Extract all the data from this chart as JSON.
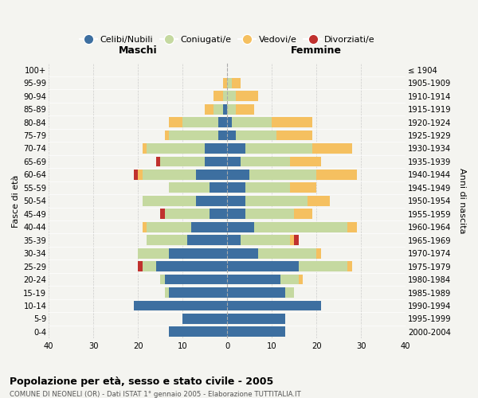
{
  "age_groups": [
    "0-4",
    "5-9",
    "10-14",
    "15-19",
    "20-24",
    "25-29",
    "30-34",
    "35-39",
    "40-44",
    "45-49",
    "50-54",
    "55-59",
    "60-64",
    "65-69",
    "70-74",
    "75-79",
    "80-84",
    "85-89",
    "90-94",
    "95-99",
    "100+"
  ],
  "birth_years": [
    "2000-2004",
    "1995-1999",
    "1990-1994",
    "1985-1989",
    "1980-1984",
    "1975-1979",
    "1970-1974",
    "1965-1969",
    "1960-1964",
    "1955-1959",
    "1950-1954",
    "1945-1949",
    "1940-1944",
    "1935-1939",
    "1930-1934",
    "1925-1929",
    "1920-1924",
    "1915-1919",
    "1910-1914",
    "1905-1909",
    "≤ 1904"
  ],
  "maschi": {
    "celibi": [
      13,
      10,
      21,
      13,
      14,
      16,
      13,
      9,
      8,
      4,
      7,
      4,
      7,
      5,
      5,
      2,
      2,
      1,
      0,
      0,
      0
    ],
    "coniugati": [
      0,
      0,
      0,
      1,
      1,
      3,
      7,
      9,
      10,
      10,
      12,
      9,
      12,
      10,
      13,
      11,
      8,
      2,
      1,
      0,
      0
    ],
    "vedovi": [
      0,
      0,
      0,
      0,
      0,
      0,
      0,
      0,
      1,
      0,
      0,
      0,
      1,
      0,
      1,
      1,
      3,
      2,
      2,
      1,
      0
    ],
    "divorziati": [
      0,
      0,
      0,
      0,
      0,
      1,
      0,
      0,
      0,
      1,
      0,
      0,
      1,
      1,
      0,
      0,
      0,
      0,
      0,
      0,
      0
    ]
  },
  "femmine": {
    "nubili": [
      13,
      13,
      21,
      13,
      12,
      16,
      7,
      3,
      6,
      4,
      4,
      4,
      5,
      3,
      4,
      2,
      1,
      0,
      0,
      0,
      0
    ],
    "coniugate": [
      0,
      0,
      0,
      2,
      4,
      11,
      13,
      11,
      21,
      11,
      14,
      10,
      15,
      11,
      15,
      9,
      9,
      2,
      2,
      1,
      0
    ],
    "vedove": [
      0,
      0,
      0,
      0,
      1,
      1,
      1,
      1,
      2,
      4,
      5,
      6,
      9,
      7,
      9,
      8,
      9,
      4,
      5,
      2,
      0
    ],
    "divorziate": [
      0,
      0,
      0,
      0,
      0,
      0,
      0,
      1,
      0,
      0,
      0,
      0,
      0,
      0,
      0,
      0,
      0,
      0,
      0,
      0,
      0
    ]
  },
  "colors": {
    "celibi": "#3d6fa0",
    "coniugati": "#c5d9a0",
    "vedovi": "#f5c060",
    "divorziati": "#c0312e"
  },
  "xlim": 40,
  "xtick_step": 10,
  "title": "Popolazione per età, sesso e stato civile - 2005",
  "subtitle": "COMUNE DI NEONELI (OR) - Dati ISTAT 1° gennaio 2005 - Elaborazione TUTTITALIA.IT",
  "ylabel_left": "Fasce di età",
  "ylabel_right": "Anni di nascita",
  "label_maschi": "Maschi",
  "label_femmine": "Femmine",
  "legend_labels": [
    "Celibi/Nubili",
    "Coniugati/e",
    "Vedovi/e",
    "Divorziati/e"
  ],
  "bg_color": "#f4f4f0"
}
